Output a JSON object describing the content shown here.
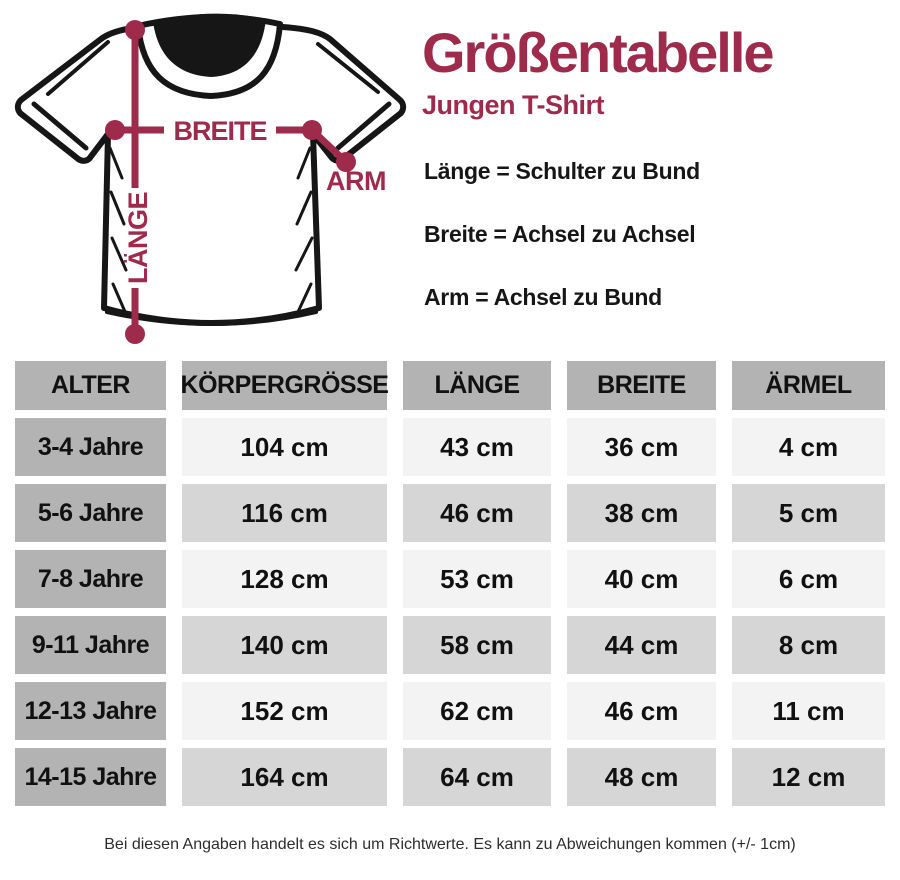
{
  "header": {
    "title": "Größentabelle",
    "subtitle": "Jungen T-Shirt"
  },
  "definitions": [
    "Länge = Schulter zu Bund",
    "Breite = Achsel zu Achsel",
    "Arm = Achsel zu Bund"
  ],
  "diagram": {
    "labels": {
      "laenge": "LÄNGE",
      "breite": "BREITE",
      "arm": "ARM"
    }
  },
  "chart_data": {
    "type": "table",
    "columns": [
      "ALTER",
      "KÖRPERGRÖSSE",
      "LÄNGE",
      "BREITE",
      "ÄRMEL"
    ],
    "rows": [
      [
        "3-4 Jahre",
        "104 cm",
        "43 cm",
        "36 cm",
        "4 cm"
      ],
      [
        "5-6 Jahre",
        "116 cm",
        "46 cm",
        "38 cm",
        "5 cm"
      ],
      [
        "7-8 Jahre",
        "128 cm",
        "53 cm",
        "40 cm",
        "6 cm"
      ],
      [
        "9-11 Jahre",
        "140 cm",
        "58 cm",
        "44 cm",
        "8 cm"
      ],
      [
        "12-13 Jahre",
        "152 cm",
        "62 cm",
        "46 cm",
        "11 cm"
      ],
      [
        "14-15 Jahre",
        "164 cm",
        "64 cm",
        "48 cm",
        "12 cm"
      ]
    ]
  },
  "footer": {
    "note": "Bei diesen Angaben handelt es sich um Richtwerte. Es kann zu Abweichungen kommen (+/- 1cm)"
  },
  "colors": {
    "accent": "#9e2a4c",
    "header_cell": "#b3b3b3",
    "row_light": "#f3f3f3",
    "row_dark": "#d6d6d6",
    "text": "#111111"
  }
}
